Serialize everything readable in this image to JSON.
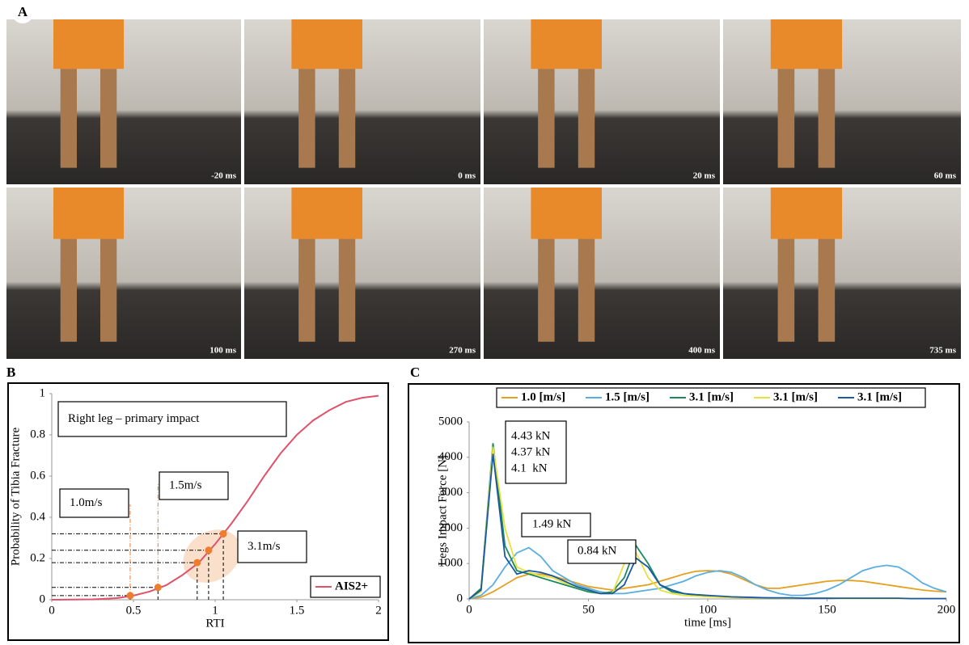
{
  "panels": [
    "A",
    "B",
    "C"
  ],
  "frames": [
    "-20 ms",
    "0 ms",
    "20 ms",
    "60 ms",
    "100 ms",
    "270 ms",
    "400 ms",
    "735 ms"
  ],
  "chart_data": [
    {
      "type": "line",
      "xlabel": "RTI",
      "ylabel": "Probability of Tibia Fracture",
      "xlim": [
        0,
        2
      ],
      "ylim": [
        0,
        1
      ],
      "xticks": [
        0,
        0.5,
        1,
        1.5,
        2
      ],
      "yticks": [
        0,
        0.2,
        0.4,
        0.6,
        0.8,
        1
      ],
      "x": [
        0,
        0.25,
        0.4,
        0.5,
        0.6,
        0.7,
        0.8,
        0.9,
        1.0,
        1.1,
        1.2,
        1.3,
        1.4,
        1.5,
        1.6,
        1.7,
        1.8,
        1.9,
        2.0
      ],
      "series": [
        {
          "name": "AIS2+",
          "color": "#e0526a",
          "values": [
            0,
            0.002,
            0.008,
            0.02,
            0.04,
            0.07,
            0.12,
            0.18,
            0.27,
            0.37,
            0.48,
            0.6,
            0.71,
            0.8,
            0.87,
            0.92,
            0.96,
            0.98,
            0.99
          ]
        }
      ],
      "points": {
        "color": "#ee7d2e",
        "x": [
          0.48,
          0.65,
          0.89,
          0.96,
          1.05
        ],
        "values": [
          0.02,
          0.06,
          0.18,
          0.24,
          0.32
        ]
      },
      "annotations": [
        "Right leg – primary impact",
        "1.5m/s",
        "1.0m/s",
        "3.1m/s"
      ]
    },
    {
      "type": "line",
      "xlabel": "time [ms]",
      "ylabel": "Legs Impact Force [N]",
      "xlim": [
        0,
        200
      ],
      "ylim": [
        0,
        5000
      ],
      "xticks": [
        0,
        50,
        100,
        150,
        200
      ],
      "yticks": [
        0,
        1000,
        2000,
        3000,
        4000,
        5000
      ],
      "x": [
        0,
        5,
        10,
        15,
        20,
        25,
        30,
        35,
        40,
        45,
        50,
        55,
        60,
        65,
        70,
        75,
        80,
        85,
        90,
        95,
        100,
        105,
        110,
        115,
        120,
        125,
        130,
        135,
        140,
        145,
        150,
        155,
        160,
        165,
        170,
        175,
        180,
        185,
        190,
        195,
        200
      ],
      "series": [
        {
          "name": "1.0 [m/s]",
          "color": "#e6a020",
          "values": [
            0,
            50,
            200,
            400,
            600,
            700,
            700,
            650,
            550,
            450,
            350,
            300,
            250,
            300,
            350,
            400,
            500,
            600,
            700,
            780,
            800,
            780,
            700,
            550,
            400,
            300,
            300,
            350,
            400,
            450,
            500,
            520,
            520,
            500,
            450,
            400,
            350,
            300,
            250,
            220,
            200
          ]
        },
        {
          "name": "1.5 [m/s]",
          "color": "#5aaee0",
          "values": [
            0,
            100,
            400,
            900,
            1300,
            1450,
            1200,
            800,
            600,
            400,
            300,
            200,
            150,
            150,
            200,
            250,
            300,
            400,
            500,
            650,
            750,
            800,
            750,
            600,
            400,
            250,
            150,
            100,
            100,
            150,
            250,
            400,
            600,
            800,
            900,
            950,
            900,
            700,
            450,
            300,
            200
          ]
        },
        {
          "name": "3.1 [m/s]",
          "color": "#1a8a5a",
          "values": [
            0,
            300,
            4400,
            1500,
            800,
            700,
            600,
            500,
            400,
            300,
            200,
            150,
            200,
            600,
            1500,
            1000,
            400,
            200,
            150,
            100,
            80,
            60,
            50,
            40,
            30,
            30,
            20,
            20,
            20,
            20,
            20,
            10,
            10,
            10,
            10,
            10,
            10,
            10,
            10,
            10,
            10
          ]
        },
        {
          "name": "3.1 [m/s]",
          "color": "#e8e040",
          "values": [
            0,
            200,
            4300,
            2000,
            900,
            750,
            650,
            600,
            450,
            350,
            250,
            150,
            150,
            1000,
            1300,
            600,
            250,
            150,
            100,
            80,
            60,
            50,
            40,
            30,
            30,
            20,
            20,
            20,
            20,
            20,
            20,
            10,
            10,
            10,
            10,
            10,
            10,
            10,
            10,
            10,
            10
          ]
        },
        {
          "name": "3.1 [m/s]",
          "color": "#1a5aa0",
          "values": [
            0,
            250,
            4100,
            1200,
            700,
            800,
            750,
            650,
            500,
            350,
            250,
            150,
            150,
            400,
            1150,
            900,
            400,
            250,
            150,
            120,
            100,
            80,
            60,
            50,
            40,
            30,
            30,
            30,
            20,
            20,
            20,
            20,
            20,
            20,
            20,
            20,
            20,
            10,
            10,
            10,
            10
          ]
        }
      ],
      "annotations": [
        "4.43 kN",
        "4.37 kN",
        "4.1  kN",
        "1.49 kN",
        "0.84 kN"
      ]
    }
  ]
}
